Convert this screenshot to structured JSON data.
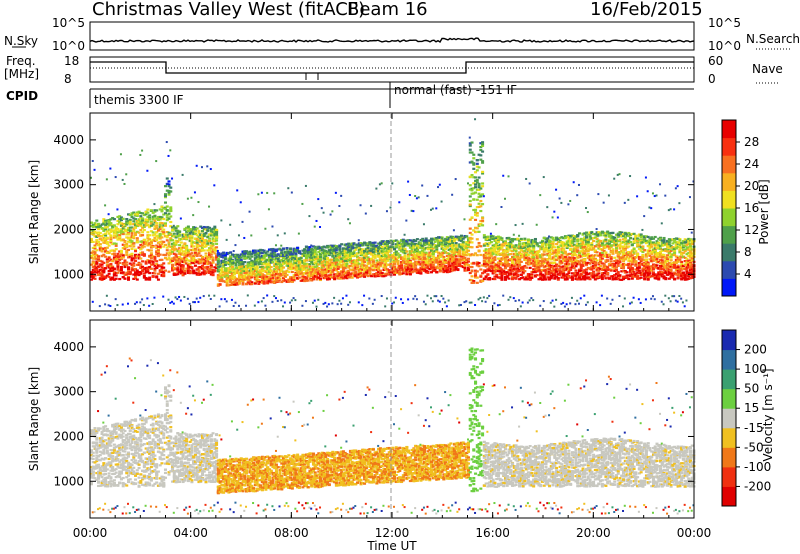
{
  "header": {
    "station": "Christmas Valley West (fitACF)",
    "beam": "Beam 16",
    "date": "16/Feb/2015"
  },
  "top_panels": {
    "nsky_label": "N.Sky",
    "nsky_ticks": [
      "10^5",
      "10^0"
    ],
    "nsearch_label": "N.Search",
    "nsearch_ticks": [
      "10^5",
      "10^0"
    ],
    "freq_label_1": "Freq.",
    "freq_label_2": "[MHz]",
    "freq_ticks": [
      "18",
      "8"
    ],
    "nave_label": "Nave",
    "nave_ticks": [
      "60",
      "0"
    ],
    "cpid_label": "CPID",
    "cpid_mode_1": "themis 3300 IF",
    "cpid_mode_2": "normal (fast) -151 IF"
  },
  "chart_data": [
    {
      "type": "heatmap",
      "name": "power-panel",
      "ylabel": "Slant Range [km]",
      "ylim": [
        180,
        4600
      ],
      "yticks": [
        "1000",
        "2000",
        "3000",
        "4000"
      ],
      "colorbar_label": "Power [dB]",
      "colorbar_ticks": [
        "4",
        "8",
        "12",
        "16",
        "20",
        "24",
        "28"
      ],
      "colorbar_colors": [
        "#0018f8",
        "#2c4ab0",
        "#3a7a6a",
        "#4fa04a",
        "#8fd22e",
        "#f0e020",
        "#f8b020",
        "#f87020",
        "#f83010",
        "#e80000"
      ]
    },
    {
      "type": "heatmap",
      "name": "velocity-panel",
      "ylabel": "Slant Range [km]",
      "ylim": [
        180,
        4600
      ],
      "yticks": [
        "1000",
        "2000",
        "3000",
        "4000"
      ],
      "colorbar_label": "Velocity [m s⁻¹]",
      "colorbar_ticks": [
        "200",
        "100",
        "50",
        "15",
        "-15",
        "-50",
        "-100",
        "-200"
      ],
      "colorbar_colors": [
        "#1a2ab0",
        "#2f6fa0",
        "#3aa070",
        "#6ccf40",
        "#c8c8c0",
        "#f0c020",
        "#f07818",
        "#f03010",
        "#e00000"
      ]
    }
  ],
  "x_axis": {
    "label": "Time UT",
    "ticks": [
      "00:00",
      "04:00",
      "08:00",
      "12:00",
      "16:00",
      "20:00",
      "00:00"
    ]
  }
}
